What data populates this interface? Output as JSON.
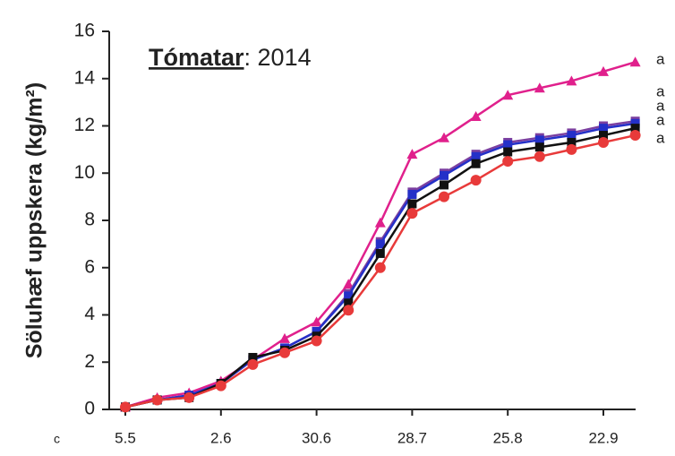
{
  "chart_data": {
    "type": "line",
    "title_parts": [
      "Tómatar",
      ": 2014"
    ],
    "y_label": "Söluhæf uppskera (kg/m²)",
    "panel_label": "c",
    "categories": [
      "5.5",
      null,
      null,
      "2.6",
      null,
      null,
      "30.6",
      null,
      null,
      "28.7",
      null,
      null,
      "25.8",
      null,
      null,
      "22.9",
      null
    ],
    "series": [
      {
        "color": "#e0208c",
        "marker": "triangle",
        "values": [
          0.1,
          0.5,
          0.7,
          1.2,
          2.1,
          3.0,
          3.7,
          5.3,
          7.9,
          10.8,
          11.5,
          12.4,
          13.3,
          13.6,
          13.9,
          14.3,
          14.7
        ]
      },
      {
        "color": "#7b3fa0",
        "marker": "square",
        "values": [
          0.1,
          0.4,
          0.6,
          1.1,
          2.1,
          2.6,
          3.3,
          4.9,
          7.1,
          9.2,
          10.0,
          10.8,
          11.3,
          11.5,
          11.7,
          12.0,
          12.2
        ]
      },
      {
        "color": "#2430c8",
        "marker": "square",
        "values": [
          0.1,
          0.4,
          0.6,
          1.1,
          2.1,
          2.6,
          3.3,
          4.8,
          7.0,
          9.1,
          9.9,
          10.7,
          11.2,
          11.4,
          11.6,
          11.9,
          12.1
        ]
      },
      {
        "color": "#111111",
        "marker": "square",
        "values": [
          0.1,
          0.4,
          0.5,
          1.1,
          2.2,
          2.5,
          3.1,
          4.5,
          6.6,
          8.7,
          9.5,
          10.4,
          10.9,
          11.1,
          11.3,
          11.6,
          11.9
        ]
      },
      {
        "color": "#e83a3a",
        "marker": "circle",
        "values": [
          0.1,
          0.4,
          0.5,
          1.0,
          1.9,
          2.4,
          2.9,
          4.2,
          6.0,
          8.3,
          9.0,
          9.7,
          10.5,
          10.7,
          11.0,
          11.3,
          11.6
        ]
      }
    ],
    "annotations": [
      "a",
      "a",
      "a",
      "a",
      "a"
    ],
    "ylim": [
      0,
      16
    ],
    "yticks": [
      0,
      2,
      4,
      6,
      8,
      10,
      12,
      14,
      16
    ],
    "grid": false
  }
}
